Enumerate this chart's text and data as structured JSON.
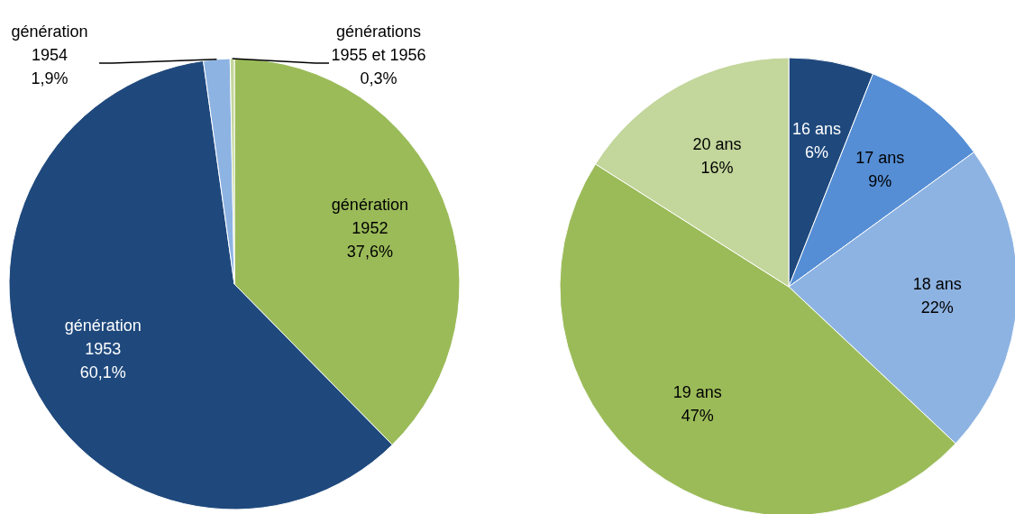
{
  "chart_data": [
    {
      "type": "pie",
      "categories": [
        "génération 1952",
        "génération 1953",
        "génération 1954",
        "générations 1955 et 1956"
      ],
      "values": [
        37.6,
        60.1,
        1.9,
        0.3
      ],
      "value_labels": [
        "37,6%",
        "60,1%",
        "1,9%",
        "0,3%"
      ],
      "colors": [
        "#9bbb59",
        "#1f497d",
        "#8db3e2",
        "#c3d69b"
      ]
    },
    {
      "type": "pie",
      "categories": [
        "16 ans",
        "17 ans",
        "18 ans",
        "19 ans",
        "20 ans"
      ],
      "values": [
        6,
        9,
        22,
        47,
        16
      ],
      "value_labels": [
        "6%",
        "9%",
        "22%",
        "47%",
        "16%"
      ],
      "colors": [
        "#1f497d",
        "#558ed5",
        "#8db3e2",
        "#9bbb59",
        "#c3d69b"
      ]
    }
  ]
}
